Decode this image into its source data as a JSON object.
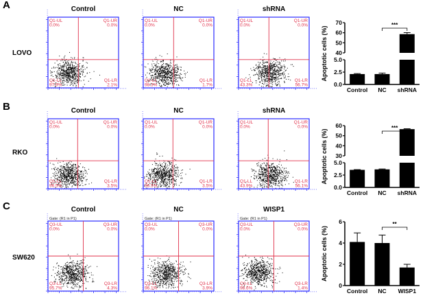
{
  "colors": {
    "frame": "#2a2aff",
    "quadrant": "#e0304a",
    "dots": "#000000",
    "bars": "#000000"
  },
  "chart_data": [
    {
      "type": "scatter",
      "panel": "A",
      "cell_line": "LOVO",
      "gate": "",
      "plots": [
        {
          "title": "Control",
          "quadrants": [
            {
              "name": "Q1-UL",
              "value": "0.0%"
            },
            {
              "name": "Q1-UR",
              "value": "0.0%"
            },
            {
              "name": "Q1-LL",
              "value": "97.9%"
            },
            {
              "name": "Q1-LR",
              "value": "2.1%"
            }
          ],
          "cloud_center": [
            0.3,
            0.78
          ]
        },
        {
          "title": "NC",
          "quadrants": [
            {
              "name": "Q1-UL",
              "value": "0.0%"
            },
            {
              "name": "Q1-UR",
              "value": "0.0%"
            },
            {
              "name": "Q1-LL",
              "value": "98.3%"
            },
            {
              "name": "Q1-LR",
              "value": "1.7%"
            }
          ],
          "cloud_center": [
            0.3,
            0.8
          ]
        },
        {
          "title": "shRNA",
          "quadrants": [
            {
              "name": "Q1-UL",
              "value": "0.0%"
            },
            {
              "name": "Q1-UR",
              "value": "0.0%"
            },
            {
              "name": "Q1-LL",
              "value": "43.3%"
            },
            {
              "name": "Q1-LR",
              "value": "56.7%"
            }
          ],
          "cloud_center": [
            0.45,
            0.78
          ]
        }
      ],
      "quadrant_split": [
        0.43,
        0.6
      ]
    },
    {
      "type": "bar",
      "panel": "A",
      "ylabel": "Apoptotic cells (%)",
      "categories": [
        "Control",
        "NC",
        "shRNA"
      ],
      "values": [
        2.1,
        2.1,
        58.6
      ],
      "errors": [
        0.1,
        0.2,
        1.5
      ],
      "y_segments": [
        [
          0,
          5
        ],
        [
          40,
          70
        ]
      ],
      "yticks": [
        [
          "0.0",
          0
        ],
        [
          "2.5",
          2.5
        ],
        [
          "5.0",
          5
        ],
        [
          "40",
          40
        ],
        [
          "50",
          50
        ],
        [
          "60",
          60
        ],
        [
          "70",
          70
        ]
      ],
      "significance": {
        "from": 1,
        "to": 2,
        "label": "***"
      }
    },
    {
      "type": "scatter",
      "panel": "B",
      "cell_line": "RKO",
      "gate": "",
      "plots": [
        {
          "title": "Control",
          "quadrants": [
            {
              "name": "Q1-UL",
              "value": "0.0%"
            },
            {
              "name": "Q1-UR",
              "value": "0.0%"
            },
            {
              "name": "Q1-LL",
              "value": "96.5%"
            },
            {
              "name": "Q1-LR",
              "value": "3.5%"
            }
          ],
          "cloud_center": [
            0.28,
            0.8
          ]
        },
        {
          "title": "NC",
          "quadrants": [
            {
              "name": "Q1-UL",
              "value": "0.0%"
            },
            {
              "name": "Q1-UR",
              "value": "0.0%"
            },
            {
              "name": "Q1-LL",
              "value": "96.5%"
            },
            {
              "name": "Q1-LR",
              "value": "3.5%"
            }
          ],
          "cloud_center": [
            0.28,
            0.8
          ]
        },
        {
          "title": "shRNA",
          "quadrants": [
            {
              "name": "Q1-UL",
              "value": "0.0%"
            },
            {
              "name": "Q1-UR",
              "value": "0.0%"
            },
            {
              "name": "Q1-LL",
              "value": "43.9%"
            },
            {
              "name": "Q1-LR",
              "value": "56.1%"
            }
          ],
          "cloud_center": [
            0.45,
            0.8
          ]
        }
      ],
      "quadrant_split": [
        0.42,
        0.6
      ]
    },
    {
      "type": "bar",
      "panel": "B",
      "ylabel": "Apoptotic cells (%)",
      "categories": [
        "Control",
        "NC",
        "shRNA"
      ],
      "values": [
        3.55,
        3.65,
        56.5
      ],
      "errors": [
        0.05,
        0.08,
        0.4
      ],
      "y_segments": [
        [
          0,
          5
        ],
        [
          30,
          60
        ]
      ],
      "yticks": [
        [
          "0.0",
          0
        ],
        [
          "2.5",
          2.5
        ],
        [
          "5.0",
          5
        ],
        [
          "30",
          30
        ],
        [
          "40",
          40
        ],
        [
          "50",
          50
        ],
        [
          "60",
          60
        ]
      ],
      "significance": {
        "from": 1,
        "to": 2,
        "label": "***"
      }
    },
    {
      "type": "scatter",
      "panel": "C",
      "cell_line": "SW620",
      "gate": "Gate: (R1 in P1)",
      "plots": [
        {
          "title": "Control",
          "quadrants": [
            {
              "name": "Q3-UL",
              "value": "0.0%"
            },
            {
              "name": "Q3-UR",
              "value": "0.0%"
            },
            {
              "name": "Q3-LL",
              "value": "95.7%"
            },
            {
              "name": "Q3-LR",
              "value": "4.3%"
            }
          ],
          "cloud_center": [
            0.35,
            0.75
          ]
        },
        {
          "title": "NC",
          "quadrants": [
            {
              "name": "Q3-UL",
              "value": "0.0%"
            },
            {
              "name": "Q3-UR",
              "value": "0.0%"
            },
            {
              "name": "Q3-LL",
              "value": "96.1%"
            },
            {
              "name": "Q3-LR",
              "value": "3.9%"
            }
          ],
          "cloud_center": [
            0.33,
            0.75
          ]
        },
        {
          "title": "WISP1",
          "quadrants": [
            {
              "name": "Q3-UL",
              "value": "0.0%"
            },
            {
              "name": "Q3-UR",
              "value": "0.0%"
            },
            {
              "name": "Q3-LL",
              "value": "98.6%"
            },
            {
              "name": "Q3-LR",
              "value": "1.4%"
            }
          ],
          "cloud_center": [
            0.28,
            0.73
          ]
        }
      ],
      "quadrant_split": [
        0.5,
        0.5
      ]
    },
    {
      "type": "bar",
      "panel": "C",
      "ylabel": "Apoptotic cells (%)",
      "categories": [
        "Control",
        "NC",
        "WISP1"
      ],
      "values": [
        4.1,
        4.0,
        1.7
      ],
      "errors": [
        0.85,
        0.75,
        0.3
      ],
      "y_segments": [
        [
          0,
          6
        ]
      ],
      "yticks": [
        [
          "0",
          0
        ],
        [
          "2",
          2
        ],
        [
          "4",
          4
        ],
        [
          "6",
          6
        ]
      ],
      "significance": {
        "from": 1,
        "to": 2,
        "label": "**"
      }
    }
  ]
}
